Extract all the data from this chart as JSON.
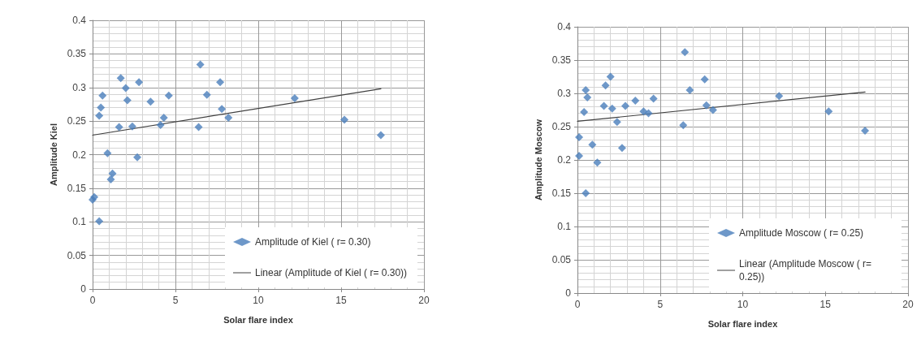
{
  "chart_data": [
    {
      "type": "scatter",
      "xlabel": "Solar flare index",
      "ylabel": "Amplitude Kiel",
      "xlim": [
        0,
        20
      ],
      "xticks": [
        0,
        5,
        10,
        15,
        20
      ],
      "ylim": [
        0,
        0.4
      ],
      "yticks": [
        0,
        0.05,
        0.1,
        0.15,
        0.2,
        0.25,
        0.3,
        0.35,
        0.4
      ],
      "grid": true,
      "legend": "bottom right",
      "marker": "diamond",
      "series": [
        {
          "name": "Amplitude of Kiel ( r= 0.30)",
          "color": "#4a7ebb",
          "x": [
            0.0,
            0.1,
            0.4,
            0.4,
            0.5,
            0.6,
            0.9,
            1.1,
            1.2,
            1.6,
            1.7,
            2.0,
            2.1,
            2.4,
            2.7,
            2.8,
            3.5,
            4.1,
            4.3,
            4.6,
            6.4,
            6.5,
            6.9,
            7.7,
            7.8,
            8.2,
            12.2,
            15.2,
            17.4
          ],
          "values": [
            0.133,
            0.137,
            0.101,
            0.258,
            0.27,
            0.288,
            0.202,
            0.163,
            0.172,
            0.241,
            0.314,
            0.299,
            0.281,
            0.242,
            0.196,
            0.308,
            0.279,
            0.244,
            0.255,
            0.288,
            0.241,
            0.334,
            0.289,
            0.308,
            0.268,
            0.255,
            0.284,
            0.252,
            0.229
          ]
        },
        {
          "name": "Linear (Amplitude of Kiel ( r= 0.30))",
          "type": "line",
          "marker": "none",
          "color": "#404040",
          "x": [
            0,
            17.4
          ],
          "values": [
            0.229,
            0.298
          ]
        }
      ]
    },
    {
      "type": "scatter",
      "xlabel": "Solar flare index",
      "ylabel": "Amplitude Moscow",
      "xlim": [
        0,
        20
      ],
      "xticks": [
        0,
        5,
        10,
        15,
        20
      ],
      "ylim": [
        0,
        0.4
      ],
      "yticks": [
        0,
        0.05,
        0.1,
        0.15,
        0.2,
        0.25,
        0.3,
        0.35,
        0.4
      ],
      "grid": true,
      "legend": "bottom right",
      "marker": "diamond",
      "series": [
        {
          "name": "Amplitude Moscow ( r= 0.25)",
          "color": "#4a7ebb",
          "x": [
            0.1,
            0.1,
            0.5,
            0.4,
            0.5,
            0.6,
            0.9,
            1.2,
            1.7,
            1.6,
            2.0,
            2.1,
            2.4,
            2.7,
            2.9,
            3.5,
            4.0,
            4.3,
            4.6,
            6.4,
            6.5,
            6.8,
            7.7,
            7.8,
            8.2,
            12.2,
            15.2,
            17.4
          ],
          "values": [
            0.234,
            0.206,
            0.15,
            0.272,
            0.305,
            0.294,
            0.223,
            0.196,
            0.312,
            0.281,
            0.325,
            0.277,
            0.257,
            0.218,
            0.281,
            0.289,
            0.273,
            0.27,
            0.292,
            0.252,
            0.362,
            0.305,
            0.321,
            0.282,
            0.275,
            0.296,
            0.273,
            0.244
          ]
        },
        {
          "name": "Linear (Amplitude Moscow ( r= 0.25))",
          "type": "line",
          "marker": "none",
          "color": "#404040",
          "x": [
            0,
            17.4
          ],
          "values": [
            0.258,
            0.302
          ]
        }
      ]
    }
  ]
}
